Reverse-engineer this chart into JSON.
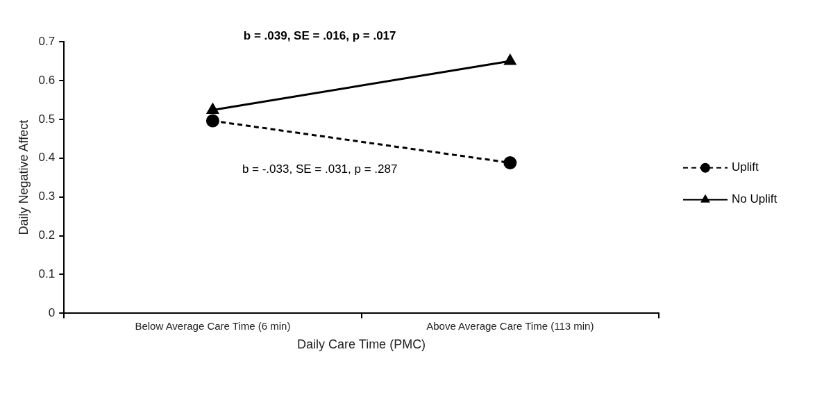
{
  "chart_data": {
    "type": "line",
    "xlabel": "Daily Care Time (PMC)",
    "ylabel": "Daily Negative Affect",
    "categories": [
      "Below Average Care Time (6 min)",
      "Above Average Care Time (113 min)"
    ],
    "series": [
      {
        "name": "Uplift",
        "color": "#000000",
        "values": [
          0.496,
          0.388
        ],
        "marker": "circle",
        "line_style": "dashed"
      },
      {
        "name": "No Uplift",
        "color": "#000000",
        "values": [
          0.524,
          0.65
        ],
        "marker": "triangle",
        "line_style": "solid"
      }
    ],
    "ylim": [
      0,
      0.7
    ],
    "yticks": [
      0,
      0.1,
      0.2,
      0.3,
      0.4,
      0.5,
      0.6,
      0.7
    ],
    "grid": false,
    "legend": "right",
    "annotations": [
      "b = .039, SE = .016, p = .017",
      "b = -.033, SE = .031, p = .287"
    ]
  }
}
